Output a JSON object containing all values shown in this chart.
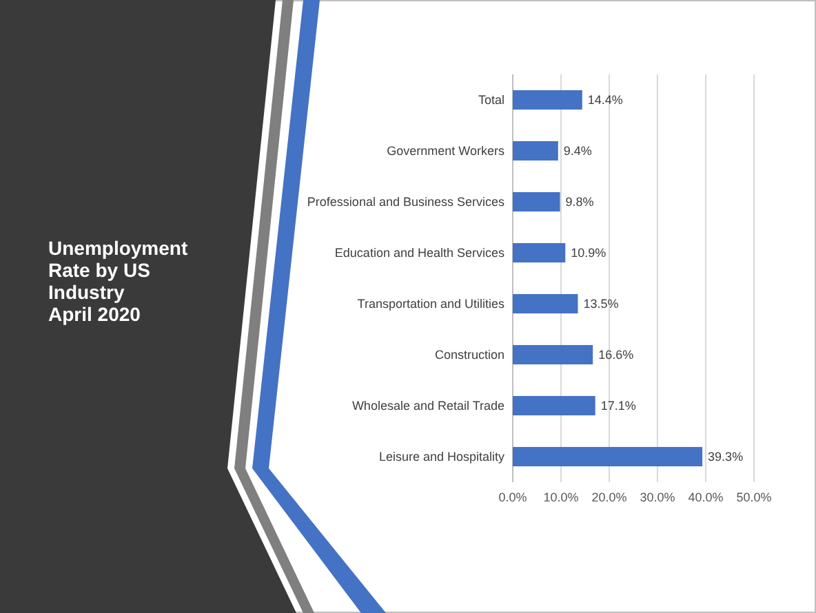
{
  "chart_data": {
    "type": "bar",
    "orientation": "horizontal",
    "title": "Unemployment Rate by US Industry April 2020",
    "categories": [
      "Total",
      "Government Workers",
      "Professional and Business Services",
      "Education and Health Services",
      "Transportation and Utilities",
      "Construction",
      "Wholesale and Retail Trade",
      "Leisure and Hospitality"
    ],
    "values": [
      14.4,
      9.4,
      9.8,
      10.9,
      13.5,
      16.6,
      17.1,
      39.3
    ],
    "value_labels": [
      "14.4%",
      "9.4%",
      "9.8%",
      "10.9%",
      "13.5%",
      "16.6%",
      "17.1%",
      "39.3%"
    ],
    "color": "#4472c4",
    "xlim": [
      0,
      50
    ],
    "xticks": [
      {
        "value": 0,
        "label": "0.0%"
      },
      {
        "value": 10,
        "label": "10.0%"
      },
      {
        "value": 20,
        "label": "20.0%"
      },
      {
        "value": 30,
        "label": "30.0%"
      },
      {
        "value": 40,
        "label": "40.0%"
      },
      {
        "value": 50,
        "label": "50.0%"
      }
    ],
    "grid": "x"
  }
}
